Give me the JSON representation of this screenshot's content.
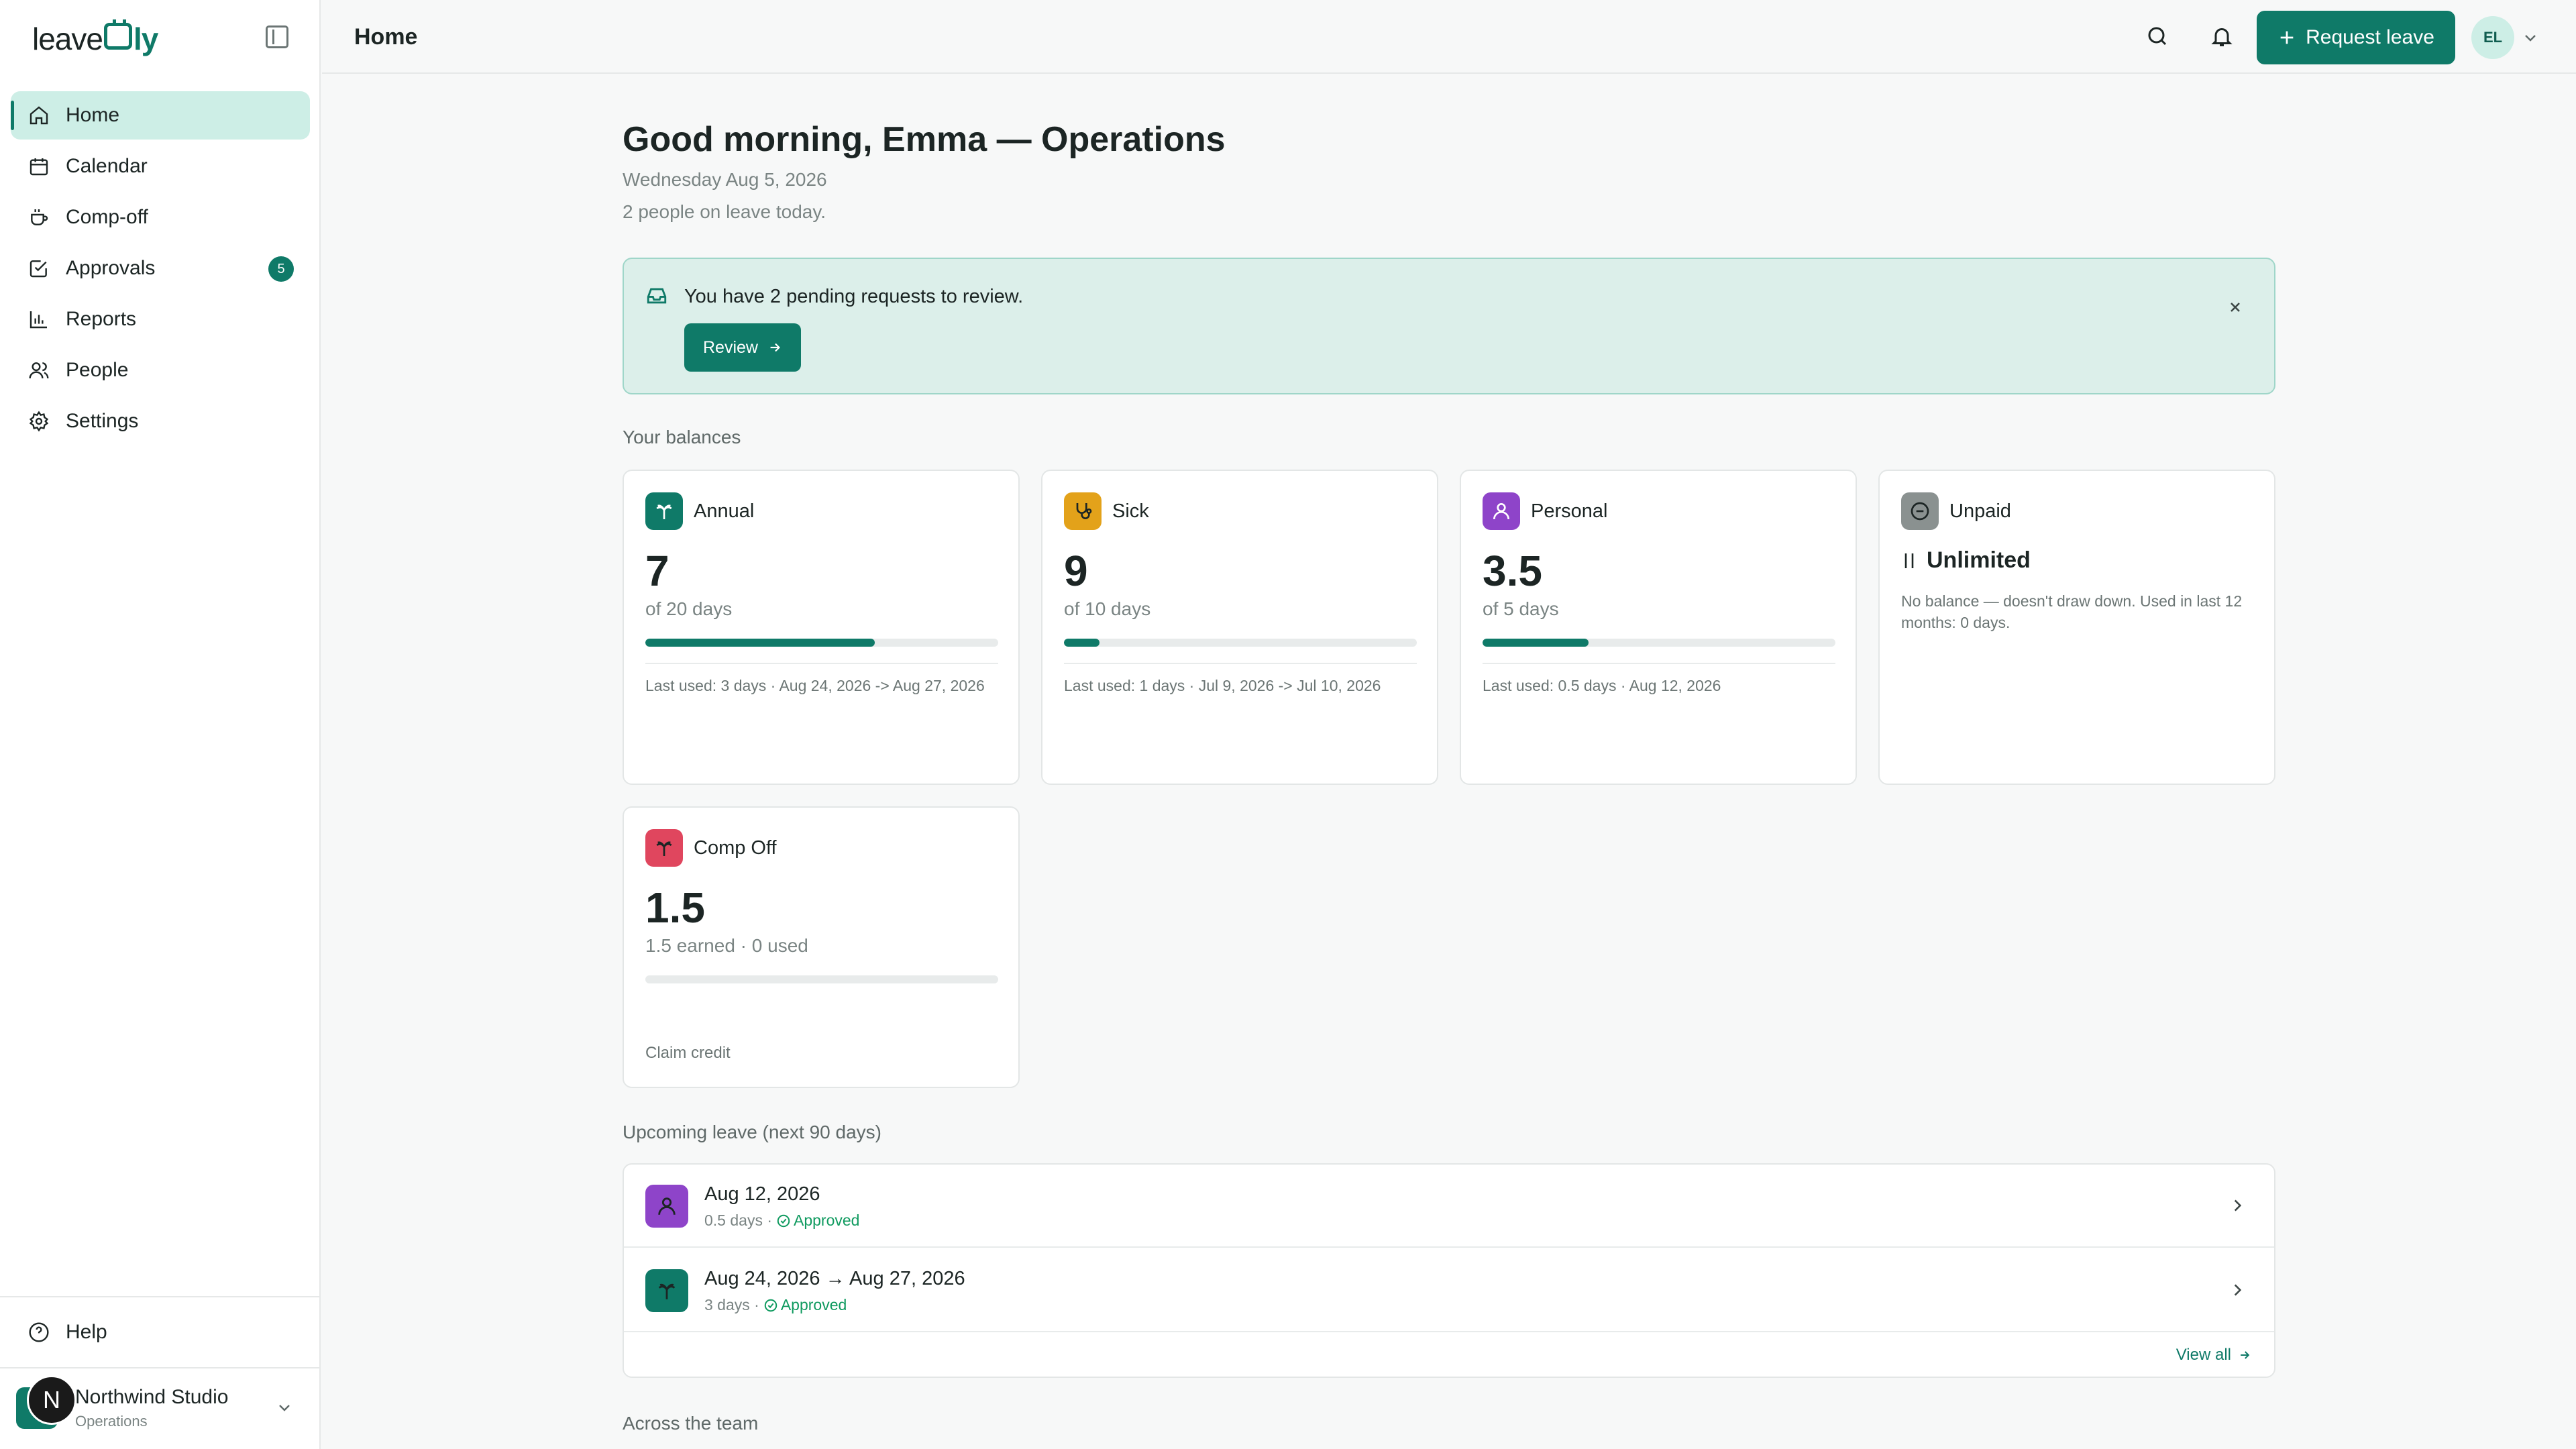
{
  "sidebar": {
    "logo_text_a": "leave",
    "logo_text_b": "ly",
    "nav": [
      {
        "label": "Home",
        "icon": "home-icon",
        "active": true
      },
      {
        "label": "Calendar",
        "icon": "calendar-icon"
      },
      {
        "label": "Comp-off",
        "icon": "coffee-cup-icon"
      },
      {
        "label": "Approvals",
        "icon": "checkbox-icon",
        "badge": "5"
      },
      {
        "label": "Reports",
        "icon": "bar-chart-icon"
      },
      {
        "label": "People",
        "icon": "people-icon"
      },
      {
        "label": "Settings",
        "icon": "gear-icon"
      }
    ],
    "help_label": "Help",
    "org": {
      "initial": "N",
      "name": "Northwind Studio",
      "team": "Operations"
    }
  },
  "topbar": {
    "title": "Home",
    "request_label": "Request leave",
    "avatar_initials": "EL"
  },
  "greeting": {
    "title": "Good morning, Emma — Operations",
    "date": "Wednesday Aug 5, 2026",
    "on_leave": "2 people on leave today."
  },
  "banner": {
    "text": "You have 2 pending requests to review.",
    "button": "Review"
  },
  "balances": {
    "label": "Your balances",
    "cards": [
      {
        "name": "Annual",
        "value": "7",
        "sub": "of 20 days",
        "progress": 0.65,
        "foot": "Last used: 3 days · Aug 24, 2026 -> Aug 27, 2026",
        "color": "#0f7a68"
      },
      {
        "name": "Sick",
        "value": "9",
        "sub": "of 10 days",
        "progress": 0.1,
        "foot": "Last used: 1 days · Jul 9, 2026 -> Jul 10, 2026",
        "color": "#e3a21a"
      },
      {
        "name": "Personal",
        "value": "3.5",
        "sub": "of 5 days",
        "progress": 0.3,
        "foot": "Last used: 0.5 days · Aug 12, 2026",
        "color": "#8e44c9"
      },
      {
        "name": "Unpaid",
        "value": "Unlimited",
        "note": "No balance — doesn't draw down. Used in last 12 months: 0 days.",
        "color": "#8a9190"
      },
      {
        "name": "Comp Off",
        "value": "1.5",
        "sub": "1.5 earned · 0 used",
        "progress": 0,
        "foot": "Claim credit",
        "color": "#e0465e"
      }
    ]
  },
  "upcoming": {
    "label": "Upcoming leave (next 90 days)",
    "items": [
      {
        "date": "Aug 12, 2026",
        "days": "0.5 days ·",
        "status": "Approved",
        "color": "#8e44c9"
      },
      {
        "date": "Aug 24, 2026 → Aug 27, 2026",
        "days": "3 days ·",
        "status": "Approved",
        "color": "#0f7a68"
      }
    ],
    "view_all": "View all"
  },
  "team": {
    "label": "Across the team"
  }
}
